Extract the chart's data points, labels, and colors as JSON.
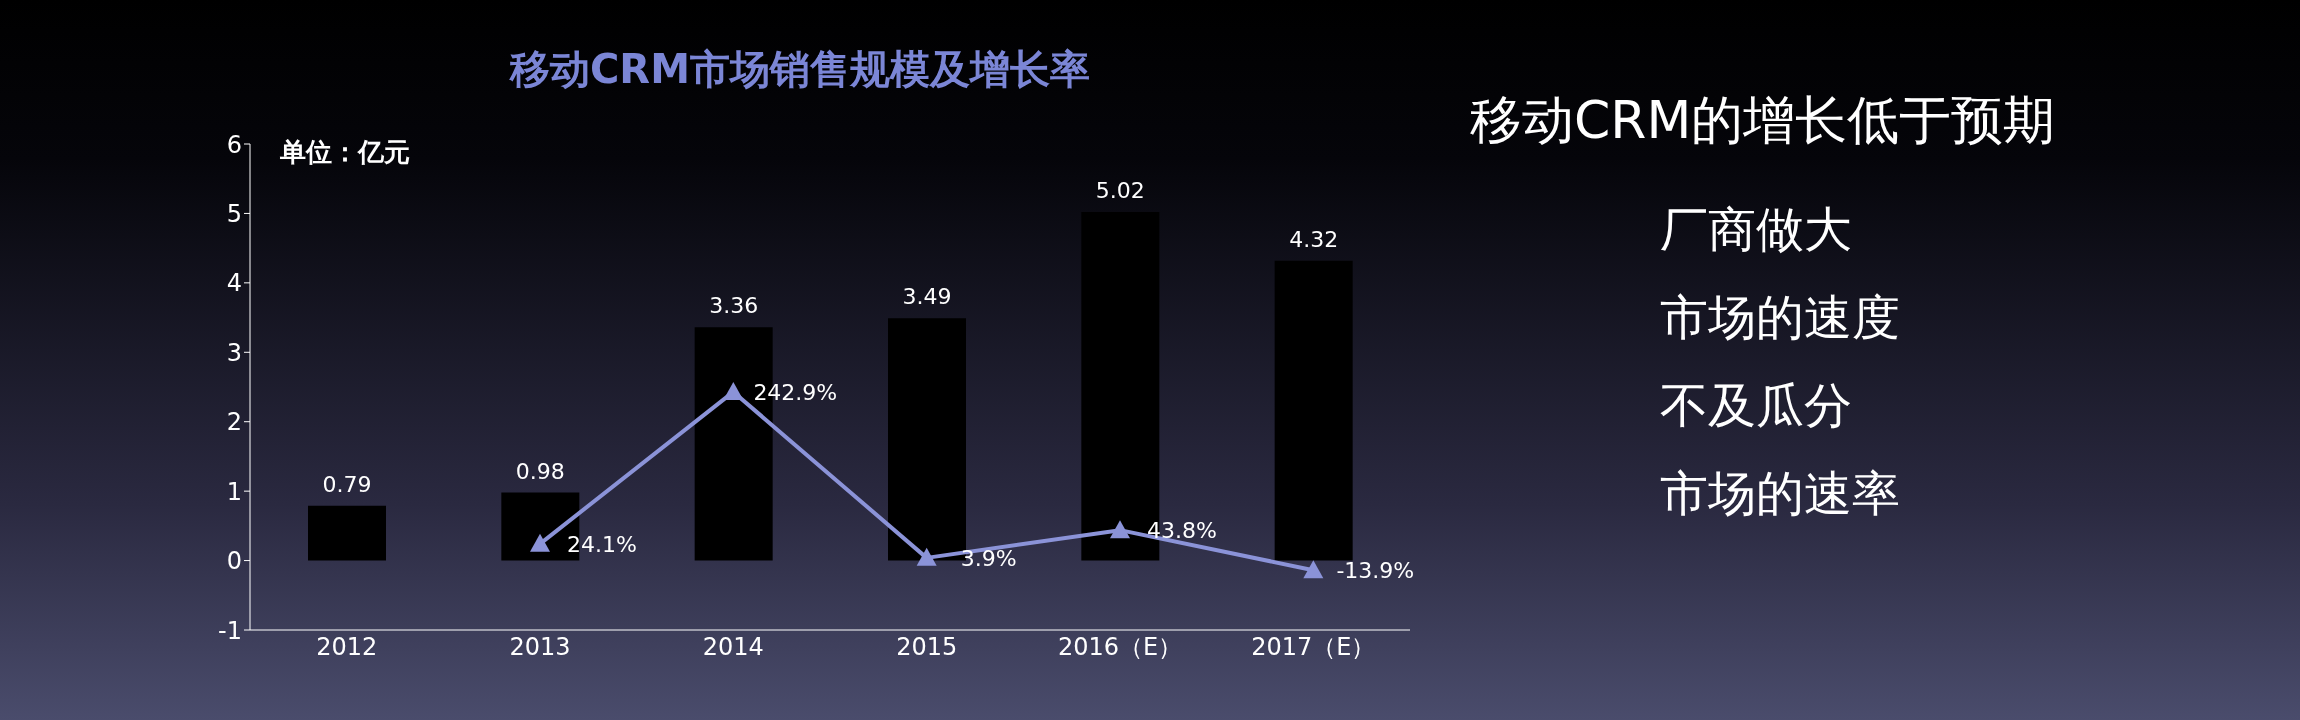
{
  "chart_data": [
    {
      "type": "bar",
      "title": "移动CRM市场销售规模及增长率",
      "ylabel": "单位：亿元",
      "categories": [
        "2012",
        "2013",
        "2014",
        "2015",
        "2016（E）",
        "2017（E）"
      ],
      "ylim": [
        -1,
        6
      ],
      "yticks": [
        -1,
        0,
        1,
        2,
        3,
        4,
        5,
        6
      ],
      "grid": false,
      "data_labels": true,
      "series": [
        {
          "type": "bar",
          "color": "#000000",
          "values": [
            0.79,
            0.98,
            3.36,
            3.49,
            5.02,
            4.32
          ]
        },
        {
          "type": "line",
          "color": "#8b93d8",
          "marker": "triangle",
          "values": [
            null,
            0.241,
            2.429,
            0.039,
            0.438,
            -0.139
          ],
          "value_labels": [
            null,
            "24.1%",
            "242.9%",
            "3.9%",
            "43.8%",
            "-13.9%"
          ]
        }
      ]
    },
    {
      "type": "other",
      "annotations": [
        "移动CRM的增长低于预期",
        "厂商做大",
        "市场的速度",
        "不及瓜分",
        "市场的速率"
      ]
    }
  ]
}
